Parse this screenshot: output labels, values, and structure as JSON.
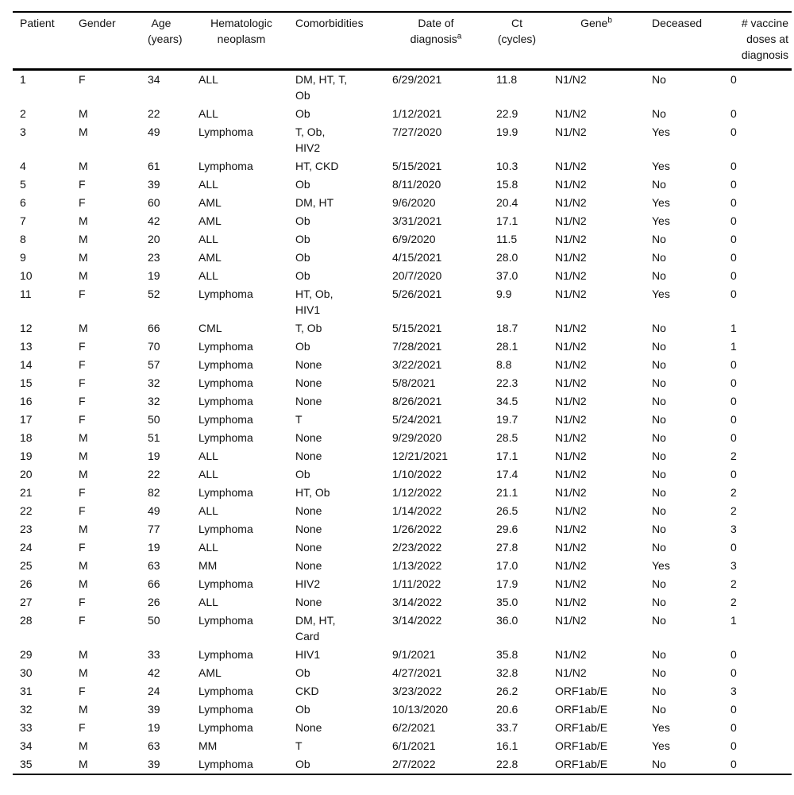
{
  "table": {
    "columns": [
      {
        "key": "patient",
        "label": "Patient"
      },
      {
        "key": "gender",
        "label": "Gender"
      },
      {
        "key": "age",
        "label": "Age\n(years)"
      },
      {
        "key": "neoplasm",
        "label": "Hematologic\nneoplasm"
      },
      {
        "key": "comorbidities",
        "label": "Comorbidities"
      },
      {
        "key": "date",
        "label": "Date of\ndiagnosis",
        "sup": "a"
      },
      {
        "key": "ct",
        "label": "Ct\n(cycles)"
      },
      {
        "key": "gene",
        "label": "Gene",
        "sup": "b"
      },
      {
        "key": "deceased",
        "label": "Deceased"
      },
      {
        "key": "doses",
        "label": "# vaccine\ndoses at\ndiagnosis"
      }
    ],
    "rows": [
      [
        "1",
        "F",
        "34",
        "ALL",
        "DM, HT, T,\nOb",
        "6/29/2021",
        "11.8",
        "N1/N2",
        "No",
        "0"
      ],
      [
        "2",
        "M",
        "22",
        "ALL",
        "Ob",
        "1/12/2021",
        "22.9",
        "N1/N2",
        "No",
        "0"
      ],
      [
        "3",
        "M",
        "49",
        "Lymphoma",
        "T, Ob,\nHIV2",
        "7/27/2020",
        "19.9",
        "N1/N2",
        "Yes",
        "0"
      ],
      [
        "4",
        "M",
        "61",
        "Lymphoma",
        "HT, CKD",
        "5/15/2021",
        "10.3",
        "N1/N2",
        "Yes",
        "0"
      ],
      [
        "5",
        "F",
        "39",
        "ALL",
        "Ob",
        "8/11/2020",
        "15.8",
        "N1/N2",
        "No",
        "0"
      ],
      [
        "6",
        "F",
        "60",
        "AML",
        "DM, HT",
        "9/6/2020",
        "20.4",
        "N1/N2",
        "Yes",
        "0"
      ],
      [
        "7",
        "M",
        "42",
        "AML",
        "Ob",
        "3/31/2021",
        "17.1",
        "N1/N2",
        "Yes",
        "0"
      ],
      [
        "8",
        "M",
        "20",
        "ALL",
        "Ob",
        "6/9/2020",
        "11.5",
        "N1/N2",
        "No",
        "0"
      ],
      [
        "9",
        "M",
        "23",
        "AML",
        "Ob",
        "4/15/2021",
        "28.0",
        "N1/N2",
        "No",
        "0"
      ],
      [
        "10",
        "M",
        "19",
        "ALL",
        "Ob",
        "20/7/2020",
        "37.0",
        "N1/N2",
        "No",
        "0"
      ],
      [
        "11",
        "F",
        "52",
        "Lymphoma",
        "HT, Ob,\nHIV1",
        "5/26/2021",
        "9.9",
        "N1/N2",
        "Yes",
        "0"
      ],
      [
        "12",
        "M",
        "66",
        "CML",
        "T, Ob",
        "5/15/2021",
        "18.7",
        "N1/N2",
        "No",
        "1"
      ],
      [
        "13",
        "F",
        "70",
        "Lymphoma",
        "Ob",
        "7/28/2021",
        "28.1",
        "N1/N2",
        "No",
        "1"
      ],
      [
        "14",
        "F",
        "57",
        "Lymphoma",
        "None",
        "3/22/2021",
        "8.8",
        "N1/N2",
        "No",
        "0"
      ],
      [
        "15",
        "F",
        "32",
        "Lymphoma",
        "None",
        "5/8/2021",
        "22.3",
        "N1/N2",
        "No",
        "0"
      ],
      [
        "16",
        "F",
        "32",
        "Lymphoma",
        "None",
        "8/26/2021",
        "34.5",
        "N1/N2",
        "No",
        "0"
      ],
      [
        "17",
        "F",
        "50",
        "Lymphoma",
        "T",
        "5/24/2021",
        "19.7",
        "N1/N2",
        "No",
        "0"
      ],
      [
        "18",
        "M",
        "51",
        "Lymphoma",
        "None",
        "9/29/2020",
        "28.5",
        "N1/N2",
        "No",
        "0"
      ],
      [
        "19",
        "M",
        "19",
        "ALL",
        "None",
        "12/21/2021",
        "17.1",
        "N1/N2",
        "No",
        "2"
      ],
      [
        "20",
        "M",
        "22",
        "ALL",
        "Ob",
        "1/10/2022",
        "17.4",
        "N1/N2",
        "No",
        "0"
      ],
      [
        "21",
        "F",
        "82",
        "Lymphoma",
        "HT, Ob",
        "1/12/2022",
        "21.1",
        "N1/N2",
        "No",
        "2"
      ],
      [
        "22",
        "F",
        "49",
        "ALL",
        "None",
        "1/14/2022",
        "26.5",
        "N1/N2",
        "No",
        "2"
      ],
      [
        "23",
        "M",
        "77",
        "Lymphoma",
        "None",
        "1/26/2022",
        "29.6",
        "N1/N2",
        "No",
        "3"
      ],
      [
        "24",
        "F",
        "19",
        "ALL",
        "None",
        "2/23/2022",
        "27.8",
        "N1/N2",
        "No",
        "0"
      ],
      [
        "25",
        "M",
        "63",
        "MM",
        "None",
        "1/13/2022",
        "17.0",
        "N1/N2",
        "Yes",
        "3"
      ],
      [
        "26",
        "M",
        "66",
        "Lymphoma",
        "HIV2",
        "1/11/2022",
        "17.9",
        "N1/N2",
        "No",
        "2"
      ],
      [
        "27",
        "F",
        "26",
        "ALL",
        "None",
        "3/14/2022",
        "35.0",
        "N1/N2",
        "No",
        "2"
      ],
      [
        "28",
        "F",
        "50",
        "Lymphoma",
        "DM, HT,\nCard",
        "3/14/2022",
        "36.0",
        "N1/N2",
        "No",
        "1"
      ],
      [
        "29",
        "M",
        "33",
        "Lymphoma",
        "HIV1",
        "9/1/2021",
        "35.8",
        "N1/N2",
        "No",
        "0"
      ],
      [
        "30",
        "M",
        "42",
        "AML",
        "Ob",
        "4/27/2021",
        "32.8",
        "N1/N2",
        "No",
        "0"
      ],
      [
        "31",
        "F",
        "24",
        "Lymphoma",
        "CKD",
        "3/23/2022",
        "26.2",
        "ORF1ab/E",
        "No",
        "3"
      ],
      [
        "32",
        "M",
        "39",
        "Lymphoma",
        "Ob",
        "10/13/2020",
        "20.6",
        "ORF1ab/E",
        "No",
        "0"
      ],
      [
        "33",
        "F",
        "19",
        "Lymphoma",
        "None",
        "6/2/2021",
        "33.7",
        "ORF1ab/E",
        "Yes",
        "0"
      ],
      [
        "34",
        "M",
        "63",
        "MM",
        "T",
        "6/1/2021",
        "16.1",
        "ORF1ab/E",
        "Yes",
        "0"
      ],
      [
        "35",
        "M",
        "39",
        "Lymphoma",
        "Ob",
        "2/7/2022",
        "22.8",
        "ORF1ab/E",
        "No",
        "0"
      ]
    ]
  }
}
